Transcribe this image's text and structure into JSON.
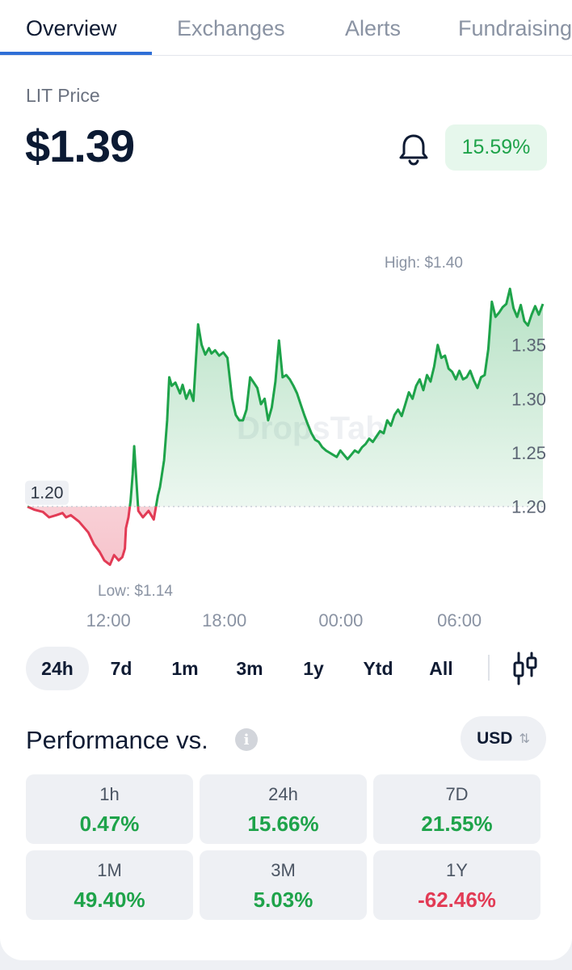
{
  "tabs": [
    {
      "label": "Overview",
      "active": true
    },
    {
      "label": "Exchanges",
      "active": false
    },
    {
      "label": "Alerts",
      "active": false
    },
    {
      "label": "Fundraising",
      "active": false
    }
  ],
  "price": {
    "label": "LIT Price",
    "value": "$1.39",
    "change": "15.59%"
  },
  "icons": {
    "bell": "bell-icon",
    "info": "info-icon",
    "candles": "candlestick-chart-icon",
    "swap": "swap-vertical-icon"
  },
  "colors": {
    "up": "#1ea34a",
    "down": "#e23b55",
    "accent": "#2f6fd6"
  },
  "chart_data": {
    "type": "area",
    "watermark": "DropsTab",
    "high_label": "High: $1.40",
    "low_label": "Low: $1.14",
    "open_label": "1.20",
    "baseline": 1.2,
    "x_ticks": [
      "12:00",
      "18:00",
      "00:00",
      "06:00"
    ],
    "y_ticks": [
      "1.35",
      "1.30",
      "1.25",
      "1.20"
    ],
    "ylim": [
      1.13,
      1.43
    ],
    "xlim": [
      0,
      1
    ],
    "series": [
      {
        "x": [
          0,
          0.014,
          0.03,
          0.042,
          0.056,
          0.068,
          0.075,
          0.084,
          0.1,
          0.118,
          0.129,
          0.14,
          0.149,
          0.16,
          0.168,
          0.177,
          0.184,
          0.189,
          0.19,
          0.191,
          0.196,
          0.2,
          0.204,
          0.207,
          0.215,
          0.224,
          0.235,
          0.245,
          0.253,
          0.257,
          0.265,
          0.271,
          0.275,
          0.28,
          0.287,
          0.296,
          0.301,
          0.308,
          0.315,
          0.322,
          0.331,
          0.338,
          0.345,
          0.352,
          0.357,
          0.364,
          0.372,
          0.38,
          0.388,
          0.397,
          0.404,
          0.411,
          0.418,
          0.425,
          0.432,
          0.439,
          0.446,
          0.453,
          0.46,
          0.467,
          0.474,
          0.481,
          0.488,
          0.495,
          0.502,
          0.509,
          0.516,
          0.523,
          0.53,
          0.537,
          0.544,
          0.551,
          0.558,
          0.565,
          0.572,
          0.579,
          0.586,
          0.593,
          0.6,
          0.607,
          0.614,
          0.621,
          0.628,
          0.635,
          0.642,
          0.649,
          0.656,
          0.663,
          0.67,
          0.677,
          0.684,
          0.691,
          0.698,
          0.705,
          0.712,
          0.719,
          0.726,
          0.733,
          0.74,
          0.747,
          0.754,
          0.761,
          0.768,
          0.775,
          0.782,
          0.789,
          0.796,
          0.803,
          0.81,
          0.817,
          0.824,
          0.831,
          0.838,
          0.845,
          0.852,
          0.859,
          0.866,
          0.873,
          0.88,
          0.887,
          0.894,
          0.901,
          0.908,
          0.915,
          0.922,
          0.929,
          0.936,
          0.943,
          0.95,
          0.957,
          0.964,
          0.971,
          0.978,
          0.985,
          0.992,
          1.0
        ],
        "y": [
          1.2,
          1.197,
          1.195,
          1.19,
          1.192,
          1.194,
          1.19,
          1.192,
          1.186,
          1.176,
          1.165,
          1.158,
          1.15,
          1.146,
          1.155,
          1.15,
          1.153,
          1.161,
          1.17,
          1.18,
          1.19,
          1.205,
          1.23,
          1.256,
          1.196,
          1.19,
          1.196,
          1.188,
          1.21,
          1.218,
          1.243,
          1.28,
          1.32,
          1.312,
          1.315,
          1.305,
          1.313,
          1.3,
          1.308,
          1.298,
          1.369,
          1.35,
          1.341,
          1.347,
          1.342,
          1.345,
          1.34,
          1.343,
          1.338,
          1.3,
          1.285,
          1.28,
          1.28,
          1.29,
          1.32,
          1.315,
          1.31,
          1.295,
          1.3,
          1.28,
          1.292,
          1.316,
          1.354,
          1.32,
          1.322,
          1.318,
          1.312,
          1.305,
          1.295,
          1.285,
          1.276,
          1.268,
          1.262,
          1.26,
          1.255,
          1.252,
          1.25,
          1.248,
          1.246,
          1.252,
          1.248,
          1.244,
          1.248,
          1.252,
          1.25,
          1.255,
          1.258,
          1.263,
          1.26,
          1.265,
          1.27,
          1.268,
          1.28,
          1.275,
          1.285,
          1.29,
          1.284,
          1.295,
          1.306,
          1.3,
          1.312,
          1.318,
          1.308,
          1.322,
          1.316,
          1.33,
          1.35,
          1.338,
          1.34,
          1.328,
          1.325,
          1.318,
          1.326,
          1.318,
          1.32,
          1.326,
          1.317,
          1.31,
          1.32,
          1.322,
          1.346,
          1.39,
          1.376,
          1.38,
          1.385,
          1.388,
          1.402,
          1.384,
          1.376,
          1.387,
          1.372,
          1.368,
          1.378,
          1.386,
          1.378,
          1.388
        ]
      }
    ]
  },
  "ranges": [
    {
      "label": "24h",
      "active": true
    },
    {
      "label": "7d",
      "active": false
    },
    {
      "label": "1m",
      "active": false
    },
    {
      "label": "3m",
      "active": false
    },
    {
      "label": "1y",
      "active": false
    },
    {
      "label": "Ytd",
      "active": false
    },
    {
      "label": "All",
      "active": false
    }
  ],
  "performance": {
    "title": "Performance vs.",
    "info_glyph": "i",
    "currency": "USD",
    "swap_glyph": "⇅",
    "cells": [
      {
        "period": "1h",
        "value": "0.47%",
        "positive": true
      },
      {
        "period": "24h",
        "value": "15.66%",
        "positive": true
      },
      {
        "period": "7D",
        "value": "21.55%",
        "positive": true
      },
      {
        "period": "1M",
        "value": "49.40%",
        "positive": true
      },
      {
        "period": "3M",
        "value": "5.03%",
        "positive": true
      },
      {
        "period": "1Y",
        "value": "-62.46%",
        "positive": false
      }
    ]
  }
}
